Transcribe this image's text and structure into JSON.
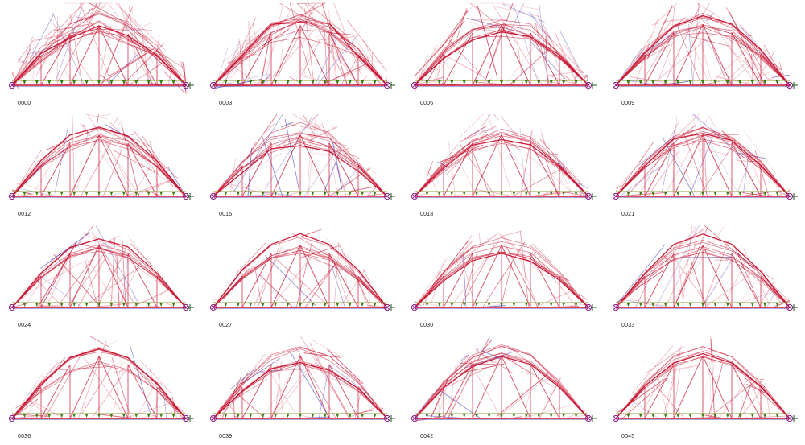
{
  "grid": {
    "columns": 4,
    "rows": 4,
    "frames": [
      {
        "label": "0000",
        "spread": 1.0,
        "seed": 11
      },
      {
        "label": "0003",
        "spread": 0.85,
        "seed": 23
      },
      {
        "label": "0006",
        "spread": 0.7,
        "seed": 37
      },
      {
        "label": "0009",
        "spread": 0.6,
        "seed": 41
      },
      {
        "label": "0012",
        "spread": 0.5,
        "seed": 53
      },
      {
        "label": "0015",
        "spread": 0.48,
        "seed": 67
      },
      {
        "label": "0018",
        "spread": 0.45,
        "seed": 71
      },
      {
        "label": "0021",
        "spread": 0.42,
        "seed": 83
      },
      {
        "label": "0024",
        "spread": 0.3,
        "seed": 97
      },
      {
        "label": "0027",
        "spread": 0.3,
        "seed": 101
      },
      {
        "label": "0030",
        "spread": 0.32,
        "seed": 113
      },
      {
        "label": "0033",
        "spread": 0.35,
        "seed": 127
      },
      {
        "label": "0036",
        "spread": 0.33,
        "seed": 131
      },
      {
        "label": "0039",
        "spread": 0.28,
        "seed": 149
      },
      {
        "label": "0042",
        "spread": 0.26,
        "seed": 157
      },
      {
        "label": "0045",
        "spread": 0.25,
        "seed": 163
      }
    ]
  },
  "colors": {
    "member": "#c8102e",
    "member_faint": "#e07a8a",
    "compression": "#4a3fb5",
    "chord": "#7a9a2a",
    "load_arrow": "#3c7d12",
    "support": "#8a1f8a",
    "label": "#222222"
  }
}
